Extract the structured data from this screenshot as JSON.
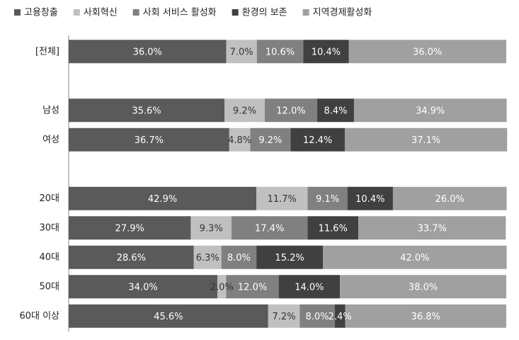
{
  "chart_data": {
    "type": "stacked-bar-horizontal",
    "categories": [
      "[전체]",
      null,
      "남성",
      "여성",
      null,
      "20대",
      "30대",
      "40대",
      "50대",
      "60대 이상"
    ],
    "xlim": [
      0,
      100
    ],
    "series": [
      {
        "name": "고용창출",
        "color": "#5a5a5a",
        "values": [
          36.0,
          null,
          35.6,
          36.7,
          null,
          42.9,
          27.9,
          28.6,
          34.0,
          45.6
        ],
        "value_labels": [
          "36.0%",
          null,
          "35.6%",
          "36.7%",
          null,
          "42.9%",
          "27.9%",
          "28.6%",
          "34.0%",
          "45.6%"
        ]
      },
      {
        "name": "사회혁신",
        "color": "#c0c0c0",
        "values": [
          7.0,
          null,
          9.2,
          4.8,
          null,
          11.7,
          9.3,
          6.3,
          2.0,
          7.2
        ],
        "value_labels": [
          "7.0%",
          null,
          "9.2%",
          "4.8%",
          null,
          "11.7%",
          "9.3%",
          "6.3%",
          "2.0%",
          "7.2%"
        ]
      },
      {
        "name": "사회 서비스 활성화",
        "color": "#808080",
        "values": [
          10.6,
          null,
          12.0,
          9.2,
          null,
          9.1,
          17.4,
          8.0,
          12.0,
          8.0
        ],
        "value_labels": [
          "10.6%",
          null,
          "12.0%",
          "9.2%",
          null,
          "9.1%",
          "17.4%",
          "8.0%",
          "12.0%",
          "8.0%"
        ]
      },
      {
        "name": "환경의 보존",
        "color": "#404040",
        "values": [
          10.4,
          null,
          8.4,
          12.4,
          null,
          10.4,
          11.6,
          15.2,
          14.0,
          2.4
        ],
        "value_labels": [
          "10.4%",
          null,
          "8.4%",
          "12.4%",
          null,
          "10.4%",
          "11.6%",
          "15.2%",
          "14.0%",
          "2.4%"
        ]
      },
      {
        "name": "지역경제활성화",
        "color": "#a0a0a0",
        "values": [
          36.0,
          null,
          34.9,
          37.1,
          null,
          26.0,
          33.7,
          42.0,
          38.0,
          36.8
        ],
        "value_labels": [
          "36.0%",
          null,
          "34.9%",
          "37.1%",
          null,
          "26.0%",
          "33.7%",
          "42.0%",
          "38.0%",
          "36.8%"
        ]
      }
    ]
  }
}
